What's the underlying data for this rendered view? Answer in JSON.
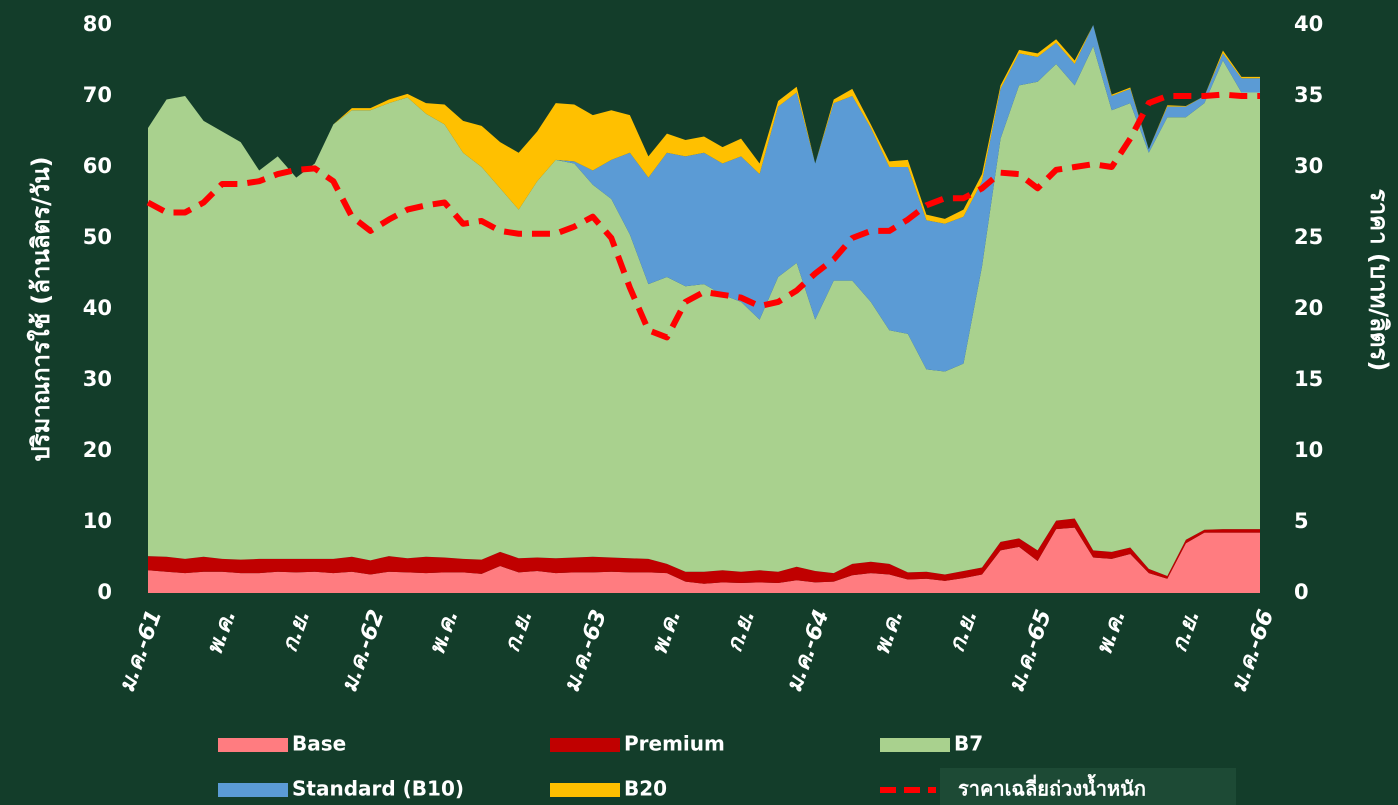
{
  "chart_data": {
    "type": "stacked_area",
    "y_label": "ปริมาณการใช้ (ล้านลิตร/วัน)",
    "y2_label": "ราคา (บาท/ลิตร)",
    "categories": [
      "ม.ค.-61",
      null,
      null,
      null,
      "พ.ค.",
      null,
      null,
      null,
      "ก.ย.",
      null,
      null,
      null,
      "ม.ค.-62",
      null,
      null,
      null,
      "พ.ค.",
      null,
      null,
      null,
      "ก.ย.",
      null,
      null,
      null,
      "ม.ค.-63",
      null,
      null,
      null,
      "พ.ค.",
      null,
      null,
      null,
      "ก.ย.",
      null,
      null,
      null,
      "ม.ค.-64",
      null,
      null,
      null,
      "พ.ค.",
      null,
      null,
      null,
      "ก.ย.",
      null,
      null,
      null,
      "ม.ค.-65",
      null,
      null,
      null,
      "พ.ค.",
      null,
      null,
      null,
      "ก.ย.",
      null,
      null,
      null,
      "ม.ค.-66"
    ],
    "ylim": [
      0,
      80
    ],
    "yticks": [
      0,
      10,
      20,
      30,
      40,
      50,
      60,
      70,
      80
    ],
    "y2lim": [
      0,
      40
    ],
    "y2ticks": [
      0,
      5,
      10,
      15,
      20,
      25,
      30,
      35,
      40
    ],
    "legend": "bottom",
    "series": [
      {
        "name": "Base",
        "color": "#ff7c80",
        "values": [
          3.2,
          3.0,
          2.8,
          3.0,
          3.0,
          2.8,
          2.8,
          3.0,
          2.9,
          3.0,
          2.8,
          3.0,
          2.6,
          3.0,
          2.9,
          2.8,
          2.9,
          2.9,
          2.7,
          3.8,
          2.9,
          3.1,
          2.8,
          2.9,
          2.9,
          3.0,
          2.9,
          2.9,
          2.8,
          1.6,
          1.3,
          1.5,
          1.4,
          1.5,
          1.4,
          1.8,
          1.5,
          1.6,
          2.5,
          2.8,
          2.6,
          1.9,
          2.0,
          1.7,
          2.1,
          2.6,
          6.0,
          6.5,
          4.5,
          9.0,
          9.2,
          5.0,
          4.8,
          5.5,
          2.8,
          2.0,
          7.0,
          8.5,
          8.5,
          8.5,
          8.5
        ]
      },
      {
        "name": "Premium",
        "color": "#c00000",
        "values": [
          2.0,
          2.1,
          2.0,
          2.1,
          1.8,
          1.9,
          2.0,
          1.8,
          1.9,
          1.8,
          2.0,
          2.1,
          2.0,
          2.2,
          2.0,
          2.3,
          2.1,
          1.9,
          2.0,
          2.0,
          2.0,
          1.9,
          2.1,
          2.1,
          2.2,
          2.0,
          2.0,
          1.9,
          1.3,
          1.4,
          1.7,
          1.7,
          1.6,
          1.7,
          1.6,
          1.9,
          1.6,
          1.2,
          1.6,
          1.6,
          1.5,
          1.0,
          1.0,
          0.9,
          1.0,
          1.0,
          1.2,
          1.2,
          1.5,
          1.2,
          1.3,
          1.0,
          1.0,
          0.9,
          0.6,
          0.4,
          0.5,
          0.4,
          0.5,
          0.5,
          0.5
        ]
      },
      {
        "name": "B7",
        "color": "#a9d18e",
        "values": [
          60.3,
          64.4,
          65.2,
          61.4,
          60.2,
          58.8,
          54.7,
          56.7,
          53.7,
          55.7,
          61.2,
          62.9,
          63.4,
          63.8,
          64.9,
          62.4,
          61.0,
          57.2,
          55.3,
          51.2,
          49.1,
          53.0,
          56.1,
          55.5,
          52.4,
          50.5,
          45.6,
          38.7,
          40.4,
          40.2,
          40.5,
          38.8,
          38.0,
          35.3,
          41.5,
          42.8,
          35.4,
          41.2,
          39.9,
          36.6,
          32.9,
          33.6,
          28.5,
          28.6,
          29.2,
          42.4,
          56.8,
          63.8,
          66.0,
          64.3,
          61.0,
          71.0,
          62.2,
          62.6,
          58.6,
          64.6,
          59.5,
          60.1,
          66.0,
          61.5,
          61.5
        ]
      },
      {
        "name": "Standard (B10)",
        "color": "#5b9bd5",
        "values": [
          0,
          0,
          0,
          0,
          0,
          0,
          0,
          0,
          0,
          0,
          0,
          0,
          0,
          0,
          0,
          0,
          0,
          0,
          0,
          0,
          0,
          0,
          0,
          0.3,
          2.0,
          5.5,
          11.5,
          15,
          17.5,
          18.3,
          18.5,
          18.5,
          20.5,
          20.5,
          24,
          24,
          22,
          25,
          26,
          24.5,
          23,
          23.5,
          21,
          20.8,
          20.7,
          12,
          7,
          4.5,
          3.5,
          3,
          3,
          3,
          2,
          2,
          0.5,
          1.5,
          1.5,
          1,
          1,
          2,
          2
        ]
      },
      {
        "name": "B20",
        "color": "#ffc000",
        "values": [
          0,
          0,
          0,
          0,
          0,
          0,
          0,
          0,
          0,
          0,
          0,
          0.3,
          0.3,
          0.5,
          0.5,
          1.5,
          2.8,
          4.5,
          5.8,
          6.5,
          8,
          7,
          8,
          8,
          7.8,
          7,
          5.3,
          3,
          2.7,
          2.3,
          2.3,
          2.3,
          2.5,
          1.5,
          0.8,
          0.8,
          0,
          0.5,
          1,
          0.5,
          0.8,
          1,
          0.8,
          0.7,
          1,
          1,
          0.5,
          0.5,
          0.5,
          0.5,
          0.5,
          0,
          0.2,
          0.2,
          0,
          0.2,
          0.1,
          0,
          0.4,
          0.2,
          0.2
        ]
      },
      {
        "name": "ราคาเฉลี่ยถ่วงน้ำหนัก",
        "color": "#ff0000",
        "axis": "y2",
        "style": "dashed",
        "values": [
          27.5,
          26.8,
          26.8,
          27.5,
          28.8,
          28.8,
          29,
          29.5,
          29.8,
          29.9,
          29,
          26.5,
          25.5,
          26.3,
          27,
          27.3,
          27.5,
          26,
          26.2,
          25.5,
          25.3,
          25.3,
          25.3,
          25.8,
          26.5,
          25,
          21.5,
          18.5,
          18,
          20.5,
          21.2,
          21,
          20.8,
          20.2,
          20.5,
          21.3,
          22.5,
          23.5,
          25,
          25.5,
          25.5,
          26.3,
          27.3,
          27.8,
          27.8,
          28.5,
          29.6,
          29.5,
          28.5,
          29.8,
          30,
          30.2,
          30,
          32,
          34.5,
          35,
          35,
          35,
          35.1,
          35,
          35
        ]
      }
    ]
  }
}
